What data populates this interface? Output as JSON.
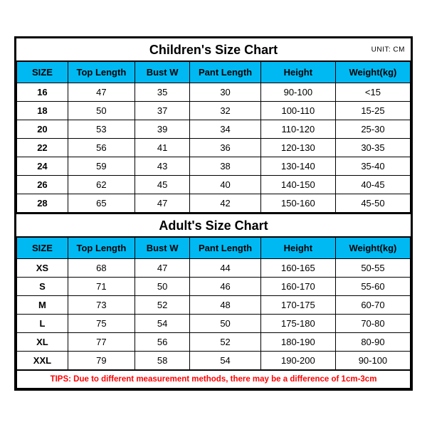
{
  "children": {
    "title": "Children's Size Chart",
    "unit": "UNIT: CM",
    "columns": [
      "SIZE",
      "Top Length",
      "Bust W",
      "Pant Length",
      "Height",
      "Weight(kg)"
    ],
    "rows": [
      [
        "16",
        "47",
        "35",
        "30",
        "90-100",
        "<15"
      ],
      [
        "18",
        "50",
        "37",
        "32",
        "100-110",
        "15-25"
      ],
      [
        "20",
        "53",
        "39",
        "34",
        "110-120",
        "25-30"
      ],
      [
        "22",
        "56",
        "41",
        "36",
        "120-130",
        "30-35"
      ],
      [
        "24",
        "59",
        "43",
        "38",
        "130-140",
        "35-40"
      ],
      [
        "26",
        "62",
        "45",
        "40",
        "140-150",
        "40-45"
      ],
      [
        "28",
        "65",
        "47",
        "42",
        "150-160",
        "45-50"
      ]
    ]
  },
  "adult": {
    "title": "Adult's Size Chart",
    "columns": [
      "SIZE",
      "Top Length",
      "Bust W",
      "Pant Length",
      "Height",
      "Weight(kg)"
    ],
    "rows": [
      [
        "XS",
        "68",
        "47",
        "44",
        "160-165",
        "50-55"
      ],
      [
        "S",
        "71",
        "50",
        "46",
        "160-170",
        "55-60"
      ],
      [
        "M",
        "73",
        "52",
        "48",
        "170-175",
        "60-70"
      ],
      [
        "L",
        "75",
        "54",
        "50",
        "175-180",
        "70-80"
      ],
      [
        "XL",
        "77",
        "56",
        "52",
        "180-190",
        "80-90"
      ],
      [
        "XXL",
        "79",
        "58",
        "54",
        "190-200",
        "90-100"
      ]
    ]
  },
  "tips": "TIPS: Due to different measurement methods, there may be a difference of 1cm-3cm",
  "colors": {
    "header_bg": "#00b9f2",
    "border": "#000000",
    "tips_text": "#ff0000",
    "background": "#ffffff"
  }
}
